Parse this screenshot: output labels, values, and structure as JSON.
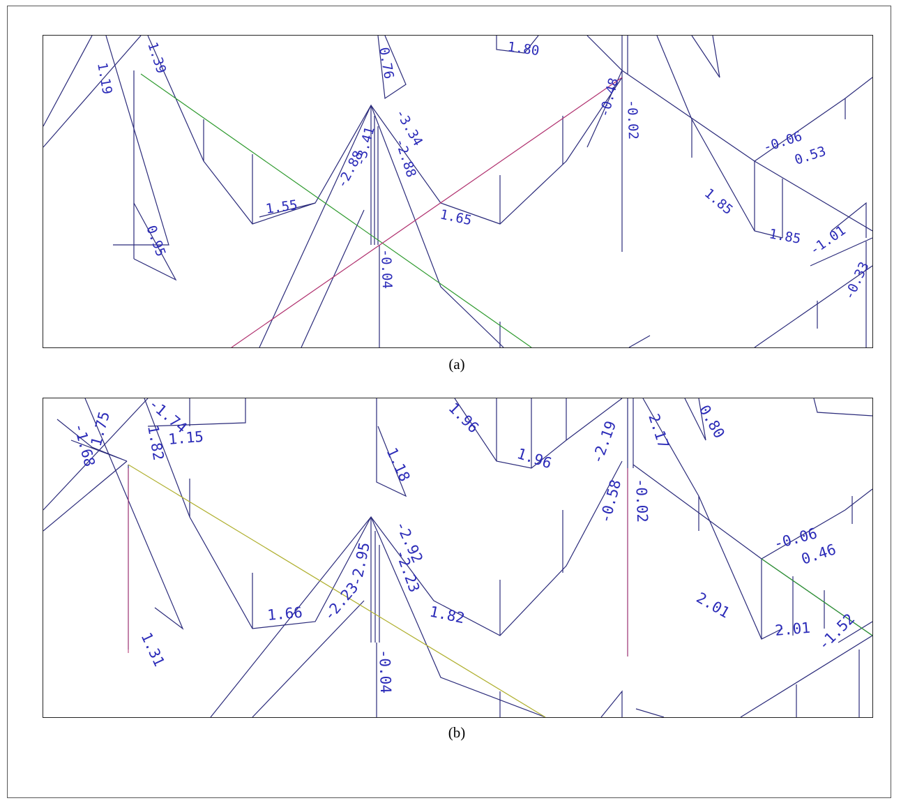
{
  "captions": {
    "a": "(a)",
    "b": "(b)"
  },
  "colors": {
    "line": "#2a2a7a",
    "label": "#2b2bb8",
    "axis_green": "#2e9a2e",
    "axis_magenta": "#b0306e",
    "axis_olive": "#b0b030"
  },
  "panel_a": {
    "labels": [
      "1.19",
      "1.39",
      "0.76",
      "1.80",
      "-0.48",
      "-0.02",
      "-0.06",
      "0.53",
      "-2.88",
      "-3.41",
      "-3.34",
      "-2.88",
      "1.55",
      "1.65",
      "0.95",
      "-0.04",
      "1.85",
      "1.85",
      "-1.01",
      "-0.33"
    ]
  },
  "panel_b": {
    "labels": [
      "-1.68",
      "1.75",
      "-1.74",
      "1.82",
      "1.15",
      "1.96",
      "1.96",
      "-2.19",
      "2.17",
      "0.80",
      "1.18",
      "-0.58",
      "-0.02",
      "-0.06",
      "0.46",
      "-2.23",
      "-2.95",
      "-2.92",
      "-2.23",
      "1.66",
      "1.82",
      "2.01",
      "2.01",
      "-1.52",
      "1.31",
      "-0.04"
    ]
  }
}
